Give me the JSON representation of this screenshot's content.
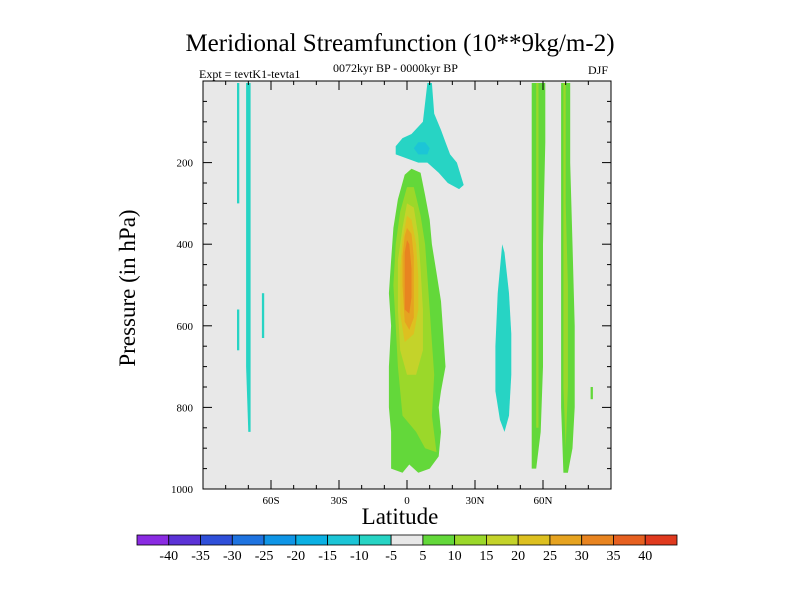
{
  "chart_data": {
    "type": "contour",
    "title": "Meridional Streamfunction (10**9kg/m-2)",
    "subtitle_left": "Expt = tevtK1-tevta1",
    "subtitle_center": "0072kyr BP - 0000kyr BP",
    "subtitle_right": "DJF",
    "xlabel": "Latitude",
    "ylabel": "Pressure (in hPa)",
    "xlim": [
      -90,
      90
    ],
    "ylim": [
      1000,
      0
    ],
    "x_ticks": [
      -60,
      -30,
      0,
      30,
      60
    ],
    "x_tick_labels": [
      "60S",
      "30S",
      "0",
      "30N",
      "60N"
    ],
    "y_ticks": [
      200,
      400,
      600,
      800,
      1000
    ],
    "y_tick_labels": [
      "200",
      "400",
      "600",
      "800",
      "1000"
    ],
    "colorbar": {
      "levels": [
        -40,
        -35,
        -30,
        -25,
        -20,
        -15,
        -10,
        -5,
        5,
        10,
        15,
        20,
        25,
        30,
        35,
        40
      ],
      "level_labels": [
        "-40",
        "-35",
        "-30",
        "-25",
        "-20",
        "-15",
        "-10",
        "-5",
        "5",
        "10",
        "15",
        "20",
        "25",
        "30",
        "35",
        "40"
      ],
      "colors": [
        "#8a2be2",
        "#5b32d6",
        "#2f4fd9",
        "#1e73e0",
        "#0f95e6",
        "#0bb0e3",
        "#1cc5d6",
        "#27d4c4",
        "#e8e8e8",
        "#63d83a",
        "#9bd82a",
        "#c4d32a",
        "#ddc020",
        "#e6a320",
        "#e88420",
        "#e66020",
        "#e03a1e"
      ]
    },
    "background": "#e8e8e8",
    "regions": [
      {
        "level": -5,
        "color": "#27d4c4",
        "points": [
          [
            -75,
            5
          ],
          [
            -74,
            5
          ],
          [
            -74,
            300
          ],
          [
            -75,
            300
          ]
        ]
      },
      {
        "level": -5,
        "color": "#27d4c4",
        "points": [
          [
            -71,
            5
          ],
          [
            -69,
            5
          ],
          [
            -69,
            860
          ],
          [
            -70,
            860
          ],
          [
            -71,
            700
          ]
        ]
      },
      {
        "level": -5,
        "color": "#27d4c4",
        "points": [
          [
            -75,
            560
          ],
          [
            -74,
            560
          ],
          [
            -74,
            660
          ],
          [
            -75,
            660
          ]
        ]
      },
      {
        "level": -5,
        "color": "#27d4c4",
        "points": [
          [
            -64,
            520
          ],
          [
            -63,
            520
          ],
          [
            -63,
            630
          ],
          [
            -64,
            630
          ]
        ]
      },
      {
        "level": -5,
        "color": "#27d4c4",
        "points": [
          [
            9,
            5
          ],
          [
            11,
            5
          ],
          [
            12,
            80
          ],
          [
            15,
            120
          ],
          [
            17,
            150
          ],
          [
            19,
            180
          ],
          [
            22,
            200
          ],
          [
            25,
            255
          ],
          [
            23,
            265
          ],
          [
            18,
            250
          ],
          [
            14,
            225
          ],
          [
            9,
            200
          ],
          [
            5,
            200
          ],
          [
            -5,
            180
          ],
          [
            -5,
            160
          ],
          [
            -2,
            140
          ],
          [
            2,
            130
          ],
          [
            7,
            100
          ]
        ]
      },
      {
        "level": -10,
        "color": "#1cc5d6",
        "points": [
          [
            5,
            150
          ],
          [
            8,
            150
          ],
          [
            10,
            165
          ],
          [
            9,
            180
          ],
          [
            5,
            180
          ],
          [
            3,
            165
          ]
        ]
      },
      {
        "level": 5,
        "color": "#63d83a",
        "points": [
          [
            -1,
            230
          ],
          [
            2,
            215
          ],
          [
            6,
            225
          ],
          [
            8,
            280
          ],
          [
            10,
            340
          ],
          [
            11,
            400
          ],
          [
            13,
            470
          ],
          [
            15,
            540
          ],
          [
            16,
            620
          ],
          [
            17,
            700
          ],
          [
            15,
            760
          ],
          [
            14,
            800
          ],
          [
            15,
            860
          ],
          [
            14,
            920
          ],
          [
            10,
            950
          ],
          [
            5,
            960
          ],
          [
            1,
            940
          ],
          [
            -2,
            960
          ],
          [
            -7,
            950
          ],
          [
            -7,
            860
          ],
          [
            -8,
            800
          ],
          [
            -8,
            700
          ],
          [
            -7,
            600
          ],
          [
            -8,
            520
          ],
          [
            -7,
            440
          ],
          [
            -6,
            360
          ],
          [
            -4,
            290
          ]
        ]
      },
      {
        "level": 10,
        "color": "#9bd82a",
        "points": [
          [
            0,
            260
          ],
          [
            3,
            260
          ],
          [
            6,
            330
          ],
          [
            8,
            400
          ],
          [
            9,
            480
          ],
          [
            10,
            560
          ],
          [
            11,
            640
          ],
          [
            12,
            720
          ],
          [
            11,
            820
          ],
          [
            13,
            910
          ],
          [
            8,
            900
          ],
          [
            4,
            860
          ],
          [
            -2,
            820
          ],
          [
            -4,
            700
          ],
          [
            -5,
            600
          ],
          [
            -6,
            500
          ],
          [
            -5,
            400
          ],
          [
            -3,
            320
          ]
        ]
      },
      {
        "level": 15,
        "color": "#c4d32a",
        "points": [
          [
            0,
            300
          ],
          [
            3,
            310
          ],
          [
            5,
            380
          ],
          [
            6,
            460
          ],
          [
            7,
            560
          ],
          [
            7,
            660
          ],
          [
            4,
            720
          ],
          [
            0,
            720
          ],
          [
            -3,
            660
          ],
          [
            -4,
            560
          ],
          [
            -4,
            440
          ],
          [
            -2,
            360
          ]
        ]
      },
      {
        "level": 20,
        "color": "#ddc020",
        "points": [
          [
            0,
            330
          ],
          [
            2,
            340
          ],
          [
            4,
            400
          ],
          [
            5,
            480
          ],
          [
            5,
            560
          ],
          [
            3,
            620
          ],
          [
            -1,
            640
          ],
          [
            -3,
            570
          ],
          [
            -3,
            460
          ],
          [
            -2,
            390
          ]
        ]
      },
      {
        "level": 25,
        "color": "#e6a320",
        "points": [
          [
            0,
            360
          ],
          [
            2,
            375
          ],
          [
            3,
            430
          ],
          [
            3,
            500
          ],
          [
            3,
            580
          ],
          [
            1,
            610
          ],
          [
            -1,
            590
          ],
          [
            -2,
            500
          ],
          [
            -2,
            430
          ],
          [
            -1,
            380
          ]
        ]
      },
      {
        "level": 30,
        "color": "#e88420",
        "points": [
          [
            0,
            390
          ],
          [
            1,
            400
          ],
          [
            2,
            460
          ],
          [
            2,
            530
          ],
          [
            1,
            570
          ],
          [
            -1,
            560
          ],
          [
            -1,
            480
          ],
          [
            -1,
            420
          ]
        ]
      },
      {
        "level": -5,
        "color": "#27d4c4",
        "points": [
          [
            42,
            400
          ],
          [
            43,
            420
          ],
          [
            45,
            520
          ],
          [
            46,
            620
          ],
          [
            46,
            720
          ],
          [
            45,
            820
          ],
          [
            43,
            860
          ],
          [
            41,
            830
          ],
          [
            39,
            760
          ],
          [
            39,
            650
          ],
          [
            40,
            520
          ]
        ]
      },
      {
        "level": 5,
        "color": "#63d83a",
        "points": [
          [
            55,
            5
          ],
          [
            61,
            5
          ],
          [
            61,
            150
          ],
          [
            60,
            400
          ],
          [
            60,
            700
          ],
          [
            59,
            860
          ],
          [
            57,
            950
          ],
          [
            55,
            950
          ],
          [
            55,
            700
          ],
          [
            55,
            400
          ]
        ]
      },
      {
        "level": 10,
        "color": "#9bd82a",
        "points": [
          [
            57,
            5
          ],
          [
            58,
            5
          ],
          [
            58,
            150
          ],
          [
            58,
            500
          ],
          [
            58,
            850
          ],
          [
            57,
            850
          ],
          [
            57,
            500
          ],
          [
            57,
            150
          ]
        ]
      },
      {
        "level": 5,
        "color": "#63d83a",
        "points": [
          [
            68,
            5
          ],
          [
            72,
            5
          ],
          [
            72,
            200
          ],
          [
            73,
            400
          ],
          [
            74,
            600
          ],
          [
            74,
            800
          ],
          [
            73,
            900
          ],
          [
            71,
            960
          ],
          [
            69,
            960
          ],
          [
            68,
            800
          ],
          [
            68,
            500
          ],
          [
            68,
            200
          ]
        ]
      },
      {
        "level": 10,
        "color": "#9bd82a",
        "points": [
          [
            69,
            5
          ],
          [
            70,
            5
          ],
          [
            70,
            300
          ],
          [
            71,
            500
          ],
          [
            71,
            750
          ],
          [
            70,
            900
          ],
          [
            69,
            750
          ],
          [
            69,
            400
          ]
        ]
      },
      {
        "level": 5,
        "color": "#63d83a",
        "points": [
          [
            81,
            750
          ],
          [
            82,
            750
          ],
          [
            82,
            780
          ],
          [
            81,
            780
          ]
        ]
      }
    ]
  }
}
